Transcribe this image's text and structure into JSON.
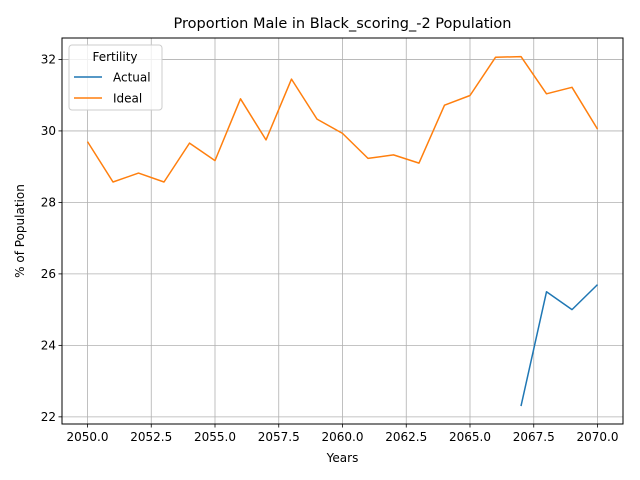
{
  "chart_data": {
    "type": "line",
    "title": "Proportion Male in Black_scoring_-2 Population",
    "xlabel": "Years",
    "ylabel": "% of Population",
    "xlim": [
      2049.0,
      2071.0
    ],
    "ylim": [
      21.8,
      32.6
    ],
    "xticks": [
      2050.0,
      2052.5,
      2055.0,
      2057.5,
      2060.0,
      2062.5,
      2065.0,
      2067.5,
      2070.0
    ],
    "xtick_labels": [
      "2050.0",
      "2052.5",
      "2055.0",
      "2057.5",
      "2060.0",
      "2062.5",
      "2065.0",
      "2067.5",
      "2070.0"
    ],
    "yticks": [
      22,
      24,
      26,
      28,
      30,
      32
    ],
    "ytick_labels": [
      "22",
      "24",
      "26",
      "28",
      "30",
      "32"
    ],
    "grid": true,
    "legend": {
      "title": "Fertility",
      "position": "top-left"
    },
    "series": [
      {
        "name": "Actual",
        "color": "#1f77b4",
        "x": [
          2067,
          2068,
          2069,
          2070
        ],
        "y": [
          22.3,
          25.5,
          25.0,
          25.7
        ]
      },
      {
        "name": "Ideal",
        "color": "#ff7f0e",
        "x": [
          2050,
          2051,
          2052,
          2053,
          2054,
          2055,
          2056,
          2057,
          2058,
          2059,
          2060,
          2061,
          2062,
          2063,
          2064,
          2065,
          2066,
          2067,
          2068,
          2069,
          2070
        ],
        "y": [
          29.7,
          28.57,
          28.82,
          28.57,
          29.66,
          29.17,
          30.9,
          29.75,
          31.45,
          30.33,
          29.93,
          29.23,
          29.33,
          29.1,
          30.72,
          30.99,
          32.06,
          32.08,
          31.04,
          31.22,
          30.05
        ]
      }
    ]
  }
}
